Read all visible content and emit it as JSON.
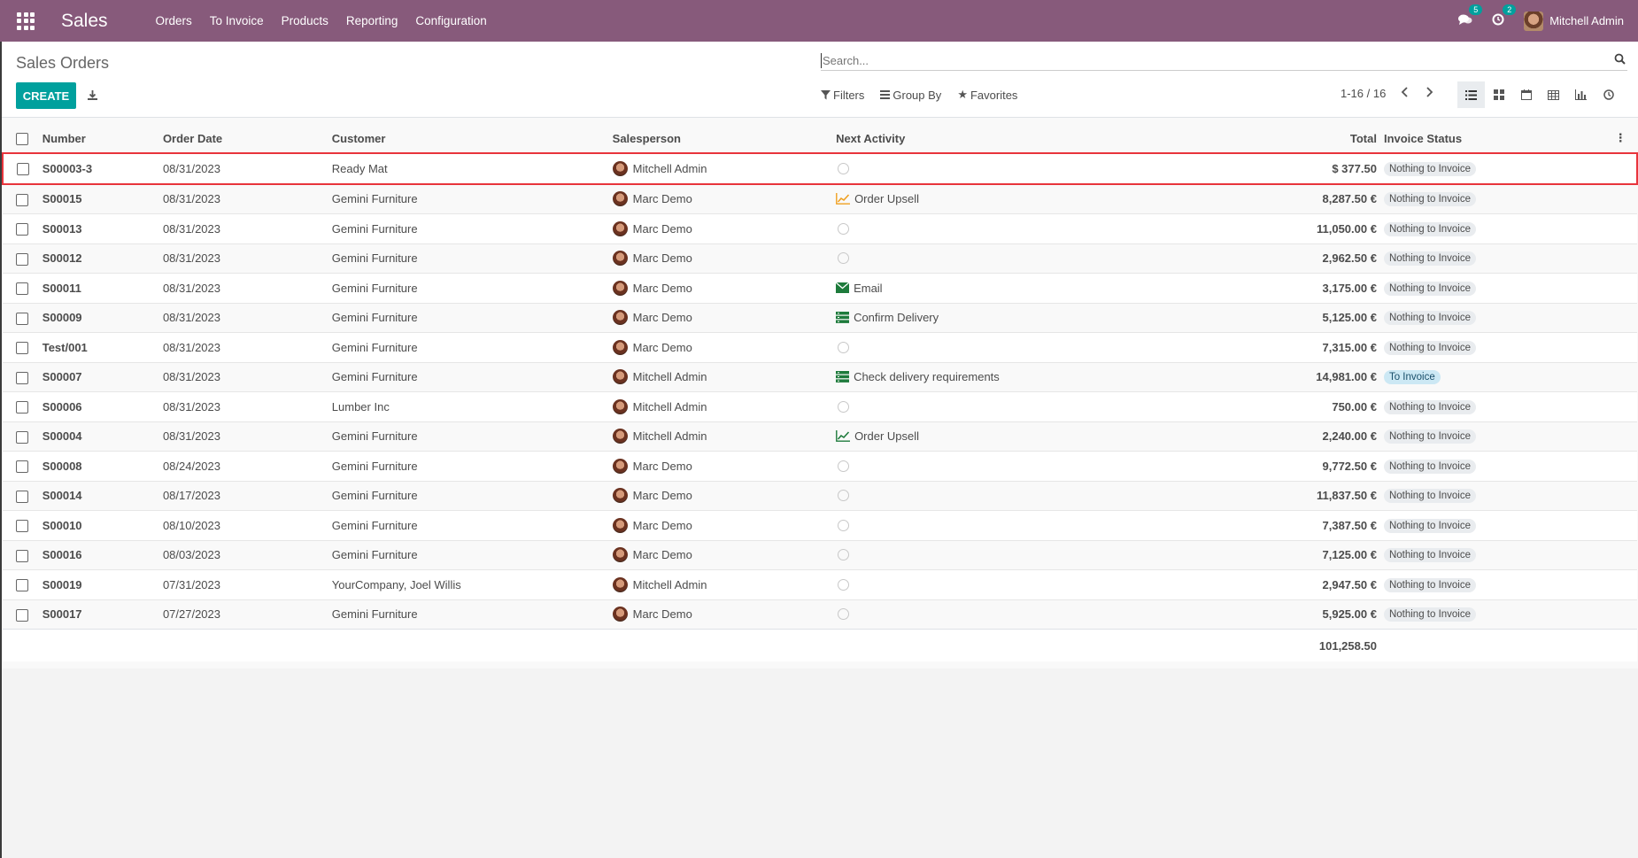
{
  "app": {
    "name": "Sales"
  },
  "menu": [
    "Orders",
    "To Invoice",
    "Products",
    "Reporting",
    "Configuration"
  ],
  "systray": {
    "messages_count": "5",
    "activities_count": "2",
    "user_name": "Mitchell Admin"
  },
  "page": {
    "title": "Sales Orders",
    "create_label": "CREATE"
  },
  "search": {
    "placeholder": "Search..."
  },
  "filters": {
    "filters_label": "Filters",
    "groupby_label": "Group By",
    "favorites_label": "Favorites"
  },
  "pager": {
    "text": "1-16 / 16"
  },
  "views": [
    "list",
    "kanban",
    "calendar",
    "pivot",
    "graph",
    "activity"
  ],
  "table": {
    "columns": [
      "Number",
      "Order Date",
      "Customer",
      "Salesperson",
      "Next Activity",
      "Total",
      "Invoice Status"
    ],
    "rows": [
      {
        "number": "S00003-3",
        "date": "08/31/2023",
        "customer": "Ready Mat",
        "salesperson": "Mitchell Admin",
        "activity": "",
        "activity_icon": "clock-icon",
        "total": "$ 377.50",
        "status": "Nothing to Invoice"
      },
      {
        "number": "S00015",
        "date": "08/31/2023",
        "customer": "Gemini Furniture",
        "salesperson": "Marc Demo",
        "activity": "Order Upsell",
        "activity_icon": "upsell-chart-icon",
        "total": "8,287.50 €",
        "status": "Nothing to Invoice"
      },
      {
        "number": "S00013",
        "date": "08/31/2023",
        "customer": "Gemini Furniture",
        "salesperson": "Marc Demo",
        "activity": "",
        "activity_icon": "clock-icon",
        "total": "11,050.00 €",
        "status": "Nothing to Invoice"
      },
      {
        "number": "S00012",
        "date": "08/31/2023",
        "customer": "Gemini Furniture",
        "salesperson": "Marc Demo",
        "activity": "",
        "activity_icon": "clock-icon",
        "total": "2,962.50 €",
        "status": "Nothing to Invoice"
      },
      {
        "number": "S00011",
        "date": "08/31/2023",
        "customer": "Gemini Furniture",
        "salesperson": "Marc Demo",
        "activity": "Email",
        "activity_icon": "email-icon",
        "total": "3,175.00 €",
        "status": "Nothing to Invoice"
      },
      {
        "number": "S00009",
        "date": "08/31/2023",
        "customer": "Gemini Furniture",
        "salesperson": "Marc Demo",
        "activity": "Confirm Delivery",
        "activity_icon": "tasks-icon",
        "total": "5,125.00 €",
        "status": "Nothing to Invoice"
      },
      {
        "number": "Test/001",
        "date": "08/31/2023",
        "customer": "Gemini Furniture",
        "salesperson": "Marc Demo",
        "activity": "",
        "activity_icon": "clock-icon",
        "total": "7,315.00 €",
        "status": "Nothing to Invoice"
      },
      {
        "number": "S00007",
        "date": "08/31/2023",
        "customer": "Gemini Furniture",
        "salesperson": "Mitchell Admin",
        "activity": "Check delivery requirements",
        "activity_icon": "tasks-icon",
        "total": "14,981.00 €",
        "status": "To Invoice"
      },
      {
        "number": "S00006",
        "date": "08/31/2023",
        "customer": "Lumber Inc",
        "salesperson": "Mitchell Admin",
        "activity": "",
        "activity_icon": "clock-icon",
        "total": "750.00 €",
        "status": "Nothing to Invoice"
      },
      {
        "number": "S00004",
        "date": "08/31/2023",
        "customer": "Gemini Furniture",
        "salesperson": "Mitchell Admin",
        "activity": "Order Upsell",
        "activity_icon": "upsell-chart-icon",
        "total": "2,240.00 €",
        "status": "Nothing to Invoice"
      },
      {
        "number": "S00008",
        "date": "08/24/2023",
        "customer": "Gemini Furniture",
        "salesperson": "Marc Demo",
        "activity": "",
        "activity_icon": "clock-icon",
        "total": "9,772.50 €",
        "status": "Nothing to Invoice"
      },
      {
        "number": "S00014",
        "date": "08/17/2023",
        "customer": "Gemini Furniture",
        "salesperson": "Marc Demo",
        "activity": "",
        "activity_icon": "clock-icon",
        "total": "11,837.50 €",
        "status": "Nothing to Invoice"
      },
      {
        "number": "S00010",
        "date": "08/10/2023",
        "customer": "Gemini Furniture",
        "salesperson": "Marc Demo",
        "activity": "",
        "activity_icon": "clock-icon",
        "total": "7,387.50 €",
        "status": "Nothing to Invoice"
      },
      {
        "number": "S00016",
        "date": "08/03/2023",
        "customer": "Gemini Furniture",
        "salesperson": "Marc Demo",
        "activity": "",
        "activity_icon": "clock-icon",
        "total": "7,125.00 €",
        "status": "Nothing to Invoice"
      },
      {
        "number": "S00019",
        "date": "07/31/2023",
        "customer": "YourCompany, Joel Willis",
        "salesperson": "Mitchell Admin",
        "activity": "",
        "activity_icon": "clock-icon",
        "total": "2,947.50 €",
        "status": "Nothing to Invoice"
      },
      {
        "number": "S00017",
        "date": "07/27/2023",
        "customer": "Gemini Furniture",
        "salesperson": "Marc Demo",
        "activity": "",
        "activity_icon": "clock-icon",
        "total": "5,925.00 €",
        "status": "Nothing to Invoice"
      }
    ],
    "grand_total": "101,258.50"
  },
  "colors": {
    "navbar": "#875a7b",
    "primary": "#00a09d",
    "selected_outline": "#e8343c",
    "to_invoice_badge": "#cce8f4"
  }
}
